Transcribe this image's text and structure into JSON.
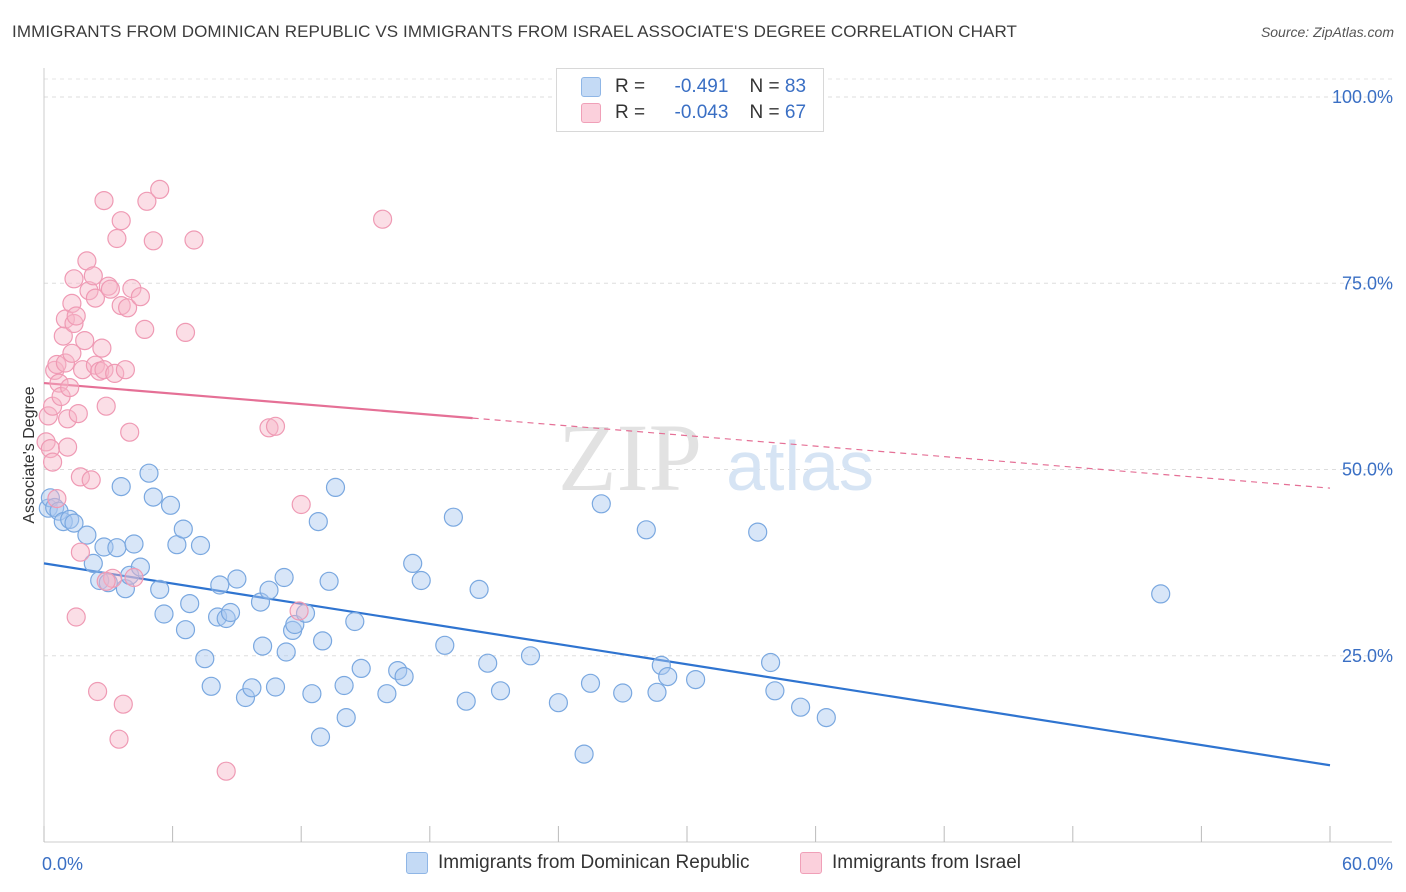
{
  "header": {
    "title": "IMMIGRANTS FROM DOMINICAN REPUBLIC VS IMMIGRANTS FROM ISRAEL ASSOCIATE'S DEGREE CORRELATION CHART",
    "source": "Source: ZipAtlas.com"
  },
  "watermark": {
    "zip": "ZIP",
    "atlas": "atlas"
  },
  "stats": [
    {
      "r_label": "R =",
      "r_value": "-0.491",
      "n_label": "N =",
      "n_value": "83",
      "color": "#a9c8f0"
    },
    {
      "r_label": "R =",
      "r_value": "-0.043",
      "n_label": "N =",
      "n_value": "67",
      "color": "#f6b6c8"
    }
  ],
  "legend": [
    {
      "label": "Immigrants from Dominican Republic",
      "color": "#a9c8f0"
    },
    {
      "label": "Immigrants from Israel",
      "color": "#f6b6c8"
    }
  ],
  "chart_data": {
    "type": "scatter",
    "title": "IMMIGRANTS FROM DOMINICAN REPUBLIC VS IMMIGRANTS FROM ISRAEL ASSOCIATE'S DEGREE CORRELATION CHART",
    "xlabel": "",
    "ylabel": "Associate's Degree",
    "xlim": [
      0,
      60
    ],
    "ylim": [
      0,
      100
    ],
    "x_tick_labels": [
      "0.0%",
      "60.0%"
    ],
    "y_ticks": [
      25,
      50,
      75,
      100
    ],
    "y_tick_labels": [
      "25.0%",
      "50.0%",
      "75.0%",
      "100.0%"
    ],
    "grid": true,
    "legend_position": "bottom",
    "series": [
      {
        "name": "Immigrants from Dominican Republic",
        "color": "#a9c8f0",
        "line_color": "#2f74d0",
        "trend": {
          "x": [
            0,
            60
          ],
          "y": [
            37.4,
            10.3
          ],
          "solid_until": 60
        },
        "points": [
          [
            0.2,
            44.8
          ],
          [
            0.3,
            46.2
          ],
          [
            0.5,
            44.9
          ],
          [
            0.7,
            44.4
          ],
          [
            0.9,
            43.0
          ],
          [
            1.2,
            43.3
          ],
          [
            1.4,
            42.8
          ],
          [
            2.0,
            41.2
          ],
          [
            2.3,
            37.4
          ],
          [
            2.6,
            35.1
          ],
          [
            2.8,
            39.6
          ],
          [
            3.0,
            34.8
          ],
          [
            3.4,
            39.5
          ],
          [
            3.8,
            34.0
          ],
          [
            3.6,
            47.7
          ],
          [
            4.0,
            35.8
          ],
          [
            4.2,
            40.0
          ],
          [
            4.5,
            36.9
          ],
          [
            4.9,
            49.5
          ],
          [
            5.1,
            46.3
          ],
          [
            5.4,
            33.9
          ],
          [
            5.6,
            30.6
          ],
          [
            5.9,
            45.2
          ],
          [
            6.2,
            39.9
          ],
          [
            6.5,
            42.0
          ],
          [
            6.6,
            28.5
          ],
          [
            6.8,
            32.0
          ],
          [
            7.3,
            39.8
          ],
          [
            7.5,
            24.6
          ],
          [
            7.8,
            20.9
          ],
          [
            8.1,
            30.2
          ],
          [
            8.2,
            34.5
          ],
          [
            8.5,
            30.0
          ],
          [
            8.7,
            30.8
          ],
          [
            9.0,
            35.3
          ],
          [
            9.4,
            19.4
          ],
          [
            9.7,
            20.7
          ],
          [
            10.1,
            32.2
          ],
          [
            10.2,
            26.3
          ],
          [
            10.5,
            33.8
          ],
          [
            10.8,
            20.8
          ],
          [
            11.2,
            35.5
          ],
          [
            11.3,
            25.5
          ],
          [
            11.6,
            28.4
          ],
          [
            11.7,
            29.2
          ],
          [
            12.2,
            30.7
          ],
          [
            12.5,
            19.9
          ],
          [
            12.8,
            43.0
          ],
          [
            13.0,
            27.0
          ],
          [
            13.3,
            35.0
          ],
          [
            13.6,
            47.6
          ],
          [
            14.1,
            16.7
          ],
          [
            14.5,
            29.6
          ],
          [
            14.8,
            23.3
          ],
          [
            14.0,
            21.0
          ],
          [
            16.0,
            19.9
          ],
          [
            16.5,
            23.0
          ],
          [
            16.8,
            22.2
          ],
          [
            17.2,
            37.4
          ],
          [
            17.6,
            35.1
          ],
          [
            18.7,
            26.4
          ],
          [
            19.1,
            43.6
          ],
          [
            19.7,
            18.9
          ],
          [
            20.3,
            33.9
          ],
          [
            20.7,
            24.0
          ],
          [
            21.3,
            20.3
          ],
          [
            22.7,
            25.0
          ],
          [
            24.0,
            18.7
          ],
          [
            25.2,
            11.8
          ],
          [
            25.5,
            21.3
          ],
          [
            26.0,
            45.4
          ],
          [
            27.0,
            20.0
          ],
          [
            28.1,
            41.9
          ],
          [
            28.6,
            20.1
          ],
          [
            28.8,
            23.7
          ],
          [
            29.1,
            22.2
          ],
          [
            30.4,
            21.8
          ],
          [
            33.3,
            41.6
          ],
          [
            33.9,
            24.1
          ],
          [
            34.1,
            20.3
          ],
          [
            35.3,
            18.1
          ],
          [
            36.5,
            16.7
          ],
          [
            52.1,
            33.3
          ],
          [
            12.9,
            14.1
          ]
        ]
      },
      {
        "name": "Immigrants from Israel",
        "color": "#f6b6c8",
        "line_color": "#e57096",
        "trend": {
          "x": [
            0,
            60
          ],
          "y": [
            61.6,
            47.5
          ],
          "solid_until": 20.0
        },
        "points": [
          [
            0.1,
            53.7
          ],
          [
            0.2,
            57.2
          ],
          [
            0.3,
            52.8
          ],
          [
            0.4,
            51.0
          ],
          [
            0.4,
            58.5
          ],
          [
            0.5,
            63.3
          ],
          [
            0.6,
            64.1
          ],
          [
            0.6,
            46.1
          ],
          [
            0.7,
            61.6
          ],
          [
            0.8,
            59.8
          ],
          [
            0.9,
            67.9
          ],
          [
            1.0,
            70.2
          ],
          [
            1.0,
            64.3
          ],
          [
            1.1,
            53.0
          ],
          [
            1.1,
            56.8
          ],
          [
            1.2,
            61.0
          ],
          [
            1.3,
            65.6
          ],
          [
            1.3,
            72.3
          ],
          [
            1.4,
            75.6
          ],
          [
            1.4,
            69.6
          ],
          [
            1.5,
            30.2
          ],
          [
            1.5,
            70.6
          ],
          [
            1.6,
            57.5
          ],
          [
            1.7,
            49.0
          ],
          [
            1.8,
            63.4
          ],
          [
            1.9,
            67.3
          ],
          [
            2.0,
            78.0
          ],
          [
            2.1,
            74.0
          ],
          [
            2.2,
            48.6
          ],
          [
            2.3,
            76.0
          ],
          [
            2.4,
            73.0
          ],
          [
            2.4,
            64.0
          ],
          [
            2.5,
            20.2
          ],
          [
            2.6,
            63.2
          ],
          [
            2.7,
            66.3
          ],
          [
            2.8,
            63.4
          ],
          [
            2.9,
            58.5
          ],
          [
            2.8,
            86.1
          ],
          [
            3.0,
            74.6
          ],
          [
            3.1,
            74.2
          ],
          [
            3.2,
            35.4
          ],
          [
            3.3,
            62.9
          ],
          [
            3.4,
            81.0
          ],
          [
            3.5,
            13.8
          ],
          [
            3.6,
            72.0
          ],
          [
            3.6,
            83.4
          ],
          [
            3.7,
            18.5
          ],
          [
            3.8,
            63.4
          ],
          [
            3.9,
            71.7
          ],
          [
            4.0,
            55.0
          ],
          [
            4.1,
            74.3
          ],
          [
            4.2,
            35.5
          ],
          [
            4.5,
            73.2
          ],
          [
            4.7,
            68.8
          ],
          [
            4.8,
            86.0
          ],
          [
            5.1,
            80.7
          ],
          [
            5.4,
            87.6
          ],
          [
            6.6,
            68.4
          ],
          [
            7.0,
            80.8
          ],
          [
            8.5,
            9.5
          ],
          [
            10.5,
            55.6
          ],
          [
            10.8,
            55.8
          ],
          [
            12.0,
            45.3
          ],
          [
            11.9,
            31.0
          ],
          [
            15.8,
            83.6
          ],
          [
            2.9,
            35.0
          ],
          [
            1.7,
            38.9
          ]
        ]
      }
    ]
  }
}
